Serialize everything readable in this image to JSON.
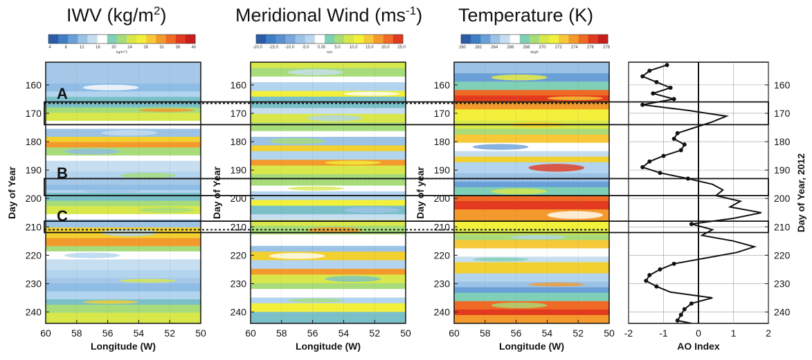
{
  "chart_data": {
    "type": "heatmap",
    "panels": [
      {
        "title_main": "IWV (kg/m",
        "title_sup": "2",
        "title_end": ")",
        "xlabel": "Longitude (W)",
        "ylabel": "Day of Year",
        "colorbar_ticks": [
          "4",
          "8",
          "12",
          "16",
          "20",
          "24",
          "28",
          "31",
          "36",
          "40"
        ],
        "colorbar_unit": "kg/m^2",
        "colorbar_colors": [
          "#2a5ca8",
          "#3f7dc4",
          "#6aa0d8",
          "#9cc3e6",
          "#c7def0",
          "#ffffff",
          "#7fd0b6",
          "#a8dc7a",
          "#d8e84a",
          "#f2f03a",
          "#f7c838",
          "#f49a2c",
          "#ef6a24",
          "#e23a1e",
          "#c81e1e"
        ],
        "xlim": [
          60,
          50
        ],
        "x_ticks": [
          "60",
          "58",
          "56",
          "54",
          "52",
          "50"
        ],
        "y_ticks": [
          "160",
          "170",
          "180",
          "190",
          "200",
          "210",
          "220",
          "230",
          "240"
        ],
        "ylim": [
          152,
          244
        ],
        "show_yticks": true,
        "colors": [
          "#a6c8e8",
          "#8fbde6",
          "#b3d4ee",
          "#7bc0c8",
          "#a8dc7a",
          "#d8e84a",
          "#ffffff",
          "#9cc3e6",
          "#f2d030",
          "#f49a2c",
          "#a8dc7a",
          "#ffffff",
          "#c7def0",
          "#b3d4ee"
        ],
        "rows": [
          8,
          3,
          2,
          4,
          2,
          3,
          3,
          3,
          2,
          2,
          3,
          2,
          4,
          3,
          2,
          2,
          1,
          3,
          2,
          3,
          2,
          3,
          4,
          3,
          2,
          3,
          4,
          3,
          2,
          3,
          3,
          2,
          3,
          4
        ]
      },
      {
        "title_main": "Meridional Wind (ms",
        "title_sup": "-1",
        "title_end": ")",
        "xlabel": "Longitude (W)",
        "ylabel": "Day of Year",
        "colorbar_ticks": [
          "-20.0",
          "-15.0",
          "-10.0",
          "-5.0",
          "0.00",
          "5.0",
          "10.0",
          "15.0",
          "20.0",
          "25.0"
        ],
        "colorbar_unit": "m/s",
        "colorbar_colors": [
          "#2a5ca8",
          "#3f7dc4",
          "#5a90d0",
          "#7aa8dc",
          "#9cc3e6",
          "#bcd6ee",
          "#ffffff",
          "#7fd0b6",
          "#a8dc7a",
          "#d8e84a",
          "#f2f03a",
          "#f7c838",
          "#f49a2c",
          "#ef6a24",
          "#e23a1e"
        ],
        "xlim": [
          60,
          50
        ],
        "x_ticks": [
          "60",
          "58",
          "56",
          "54",
          "52",
          "50"
        ],
        "y_ticks": [
          "160",
          "170",
          "180",
          "190",
          "200",
          "210",
          "220",
          "230",
          "240"
        ],
        "ylim": [
          152,
          244
        ],
        "show_yticks": true,
        "colors": [
          "#d8e84a",
          "#a8dc7a",
          "#ffffff",
          "#b3d4ee",
          "#f2f03a",
          "#7bc0c8",
          "#c7def0",
          "#d8e84a",
          "#a8dc7a",
          "#ffffff",
          "#9cc3e6",
          "#f2d030",
          "#b3d4ee",
          "#f49a2c"
        ],
        "rows": [
          2,
          3,
          2,
          3,
          2,
          4,
          2,
          3,
          3,
          2,
          3,
          2,
          3,
          2,
          3,
          4,
          2,
          3,
          2,
          3,
          2,
          2,
          3,
          4,
          2,
          3,
          3,
          2,
          3,
          2,
          3,
          2,
          3,
          4
        ]
      },
      {
        "title_main": "Temperature (K)",
        "title_sup": "",
        "title_end": "",
        "xlabel": "Longitude (W)",
        "ylabel": "Day of year",
        "colorbar_ticks": [
          "260",
          "262",
          "264",
          "266",
          "268",
          "270",
          "272",
          "274",
          "276",
          "278"
        ],
        "colorbar_unit": "degK",
        "colorbar_colors": [
          "#2a5ca8",
          "#3f7dc4",
          "#6aa0d8",
          "#9cc3e6",
          "#c7def0",
          "#ffffff",
          "#7fd0b6",
          "#a8dc7a",
          "#d8e84a",
          "#f2f03a",
          "#f7c838",
          "#f49a2c",
          "#ef6a24",
          "#e23a1e",
          "#c81e1e"
        ],
        "xlim": [
          60,
          50
        ],
        "x_ticks": [
          "60",
          "58",
          "56",
          "54",
          "52",
          "50"
        ],
        "y_ticks": [
          "160",
          "170",
          "180",
          "190",
          "200",
          "210",
          "220",
          "230",
          "240"
        ],
        "ylim": [
          152,
          244
        ],
        "show_yticks": true,
        "colors": [
          "#9cc3e6",
          "#6aa0d8",
          "#7fd0b6",
          "#ef6a24",
          "#e23a1e",
          "#f49a2c",
          "#f2f03a",
          "#d8e84a",
          "#a8dc7a",
          "#f7c838",
          "#ffffff",
          "#c7def0",
          "#f2d030",
          "#b3d4ee"
        ],
        "rows": [
          4,
          3,
          3,
          2,
          2,
          3,
          4,
          3,
          2,
          3,
          3,
          2,
          2,
          4,
          3,
          2,
          3,
          2,
          3,
          4,
          3,
          2,
          2,
          3,
          3,
          2,
          4,
          3,
          2,
          2,
          3,
          3,
          2,
          3
        ]
      }
    ],
    "ao": {
      "xlabel": "AO Index",
      "ylabel": "Day of Year, 2012",
      "xlim": [
        -2,
        2
      ],
      "ylim": [
        152,
        244
      ],
      "x_ticks": [
        "-2",
        "-1",
        "0",
        "1",
        "2"
      ],
      "y_ticks": [
        "160",
        "170",
        "180",
        "190",
        "200",
        "210",
        "220",
        "230",
        "240"
      ],
      "days": [
        153,
        155,
        157,
        159,
        161,
        163,
        165,
        167,
        169,
        171,
        173,
        175,
        177,
        179,
        181,
        183,
        185,
        187,
        189,
        191,
        193,
        195,
        197,
        199,
        201,
        203,
        205,
        207,
        209,
        211,
        213,
        215,
        217,
        219,
        221,
        223,
        225,
        227,
        229,
        231,
        233,
        235,
        237,
        239,
        241,
        243,
        244
      ],
      "values": [
        -0.9,
        -1.4,
        -1.6,
        -1.2,
        -0.8,
        -1.3,
        -0.7,
        -1.6,
        -0.3,
        0.8,
        0.4,
        -0.1,
        -0.6,
        -0.7,
        -0.4,
        -0.5,
        -1.0,
        -1.4,
        -1.6,
        -1.1,
        -0.3,
        0.4,
        0.7,
        0.5,
        1.2,
        0.9,
        1.8,
        1.0,
        -0.2,
        0.4,
        0.1,
        1.0,
        1.6,
        1.1,
        0.2,
        -0.7,
        -1.1,
        -1.4,
        -1.5,
        -1.2,
        -0.8,
        0.4,
        -0.2,
        -0.4,
        -0.5,
        -0.6,
        -0.2
      ],
      "marked": [
        0,
        1,
        2,
        3,
        4,
        5,
        6,
        7,
        12,
        13,
        14,
        15,
        16,
        17,
        18,
        19,
        20,
        28,
        35,
        36,
        37,
        38,
        39,
        42,
        43,
        44,
        45
      ]
    },
    "events": {
      "labels": [
        "A",
        "B",
        "C"
      ],
      "label_days": [
        163,
        191,
        206
      ],
      "bands": [
        [
          166,
          174
        ],
        [
          193,
          199
        ],
        [
          208,
          212
        ]
      ],
      "dotted_days": [
        166.5,
        193,
        211
      ]
    }
  }
}
